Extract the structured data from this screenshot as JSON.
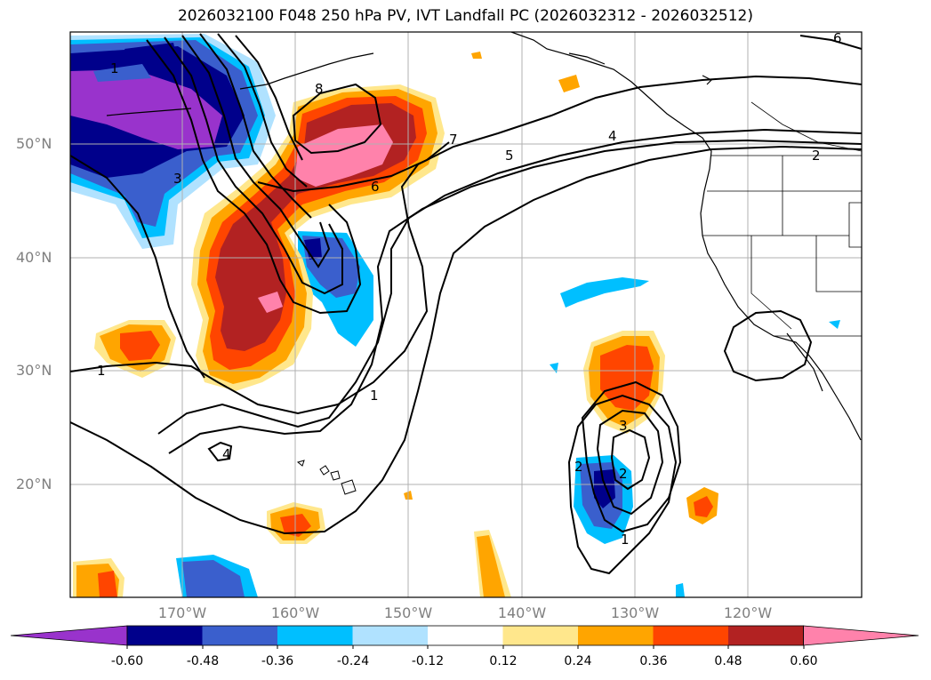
{
  "title": "2026032100 F048 250 hPa PV, IVT Landfall PC (2026032312 - 2026032512)",
  "lat_labels": [
    "50°N",
    "40°N",
    "30°N",
    "20°N"
  ],
  "lon_labels": [
    "170°W",
    "160°W",
    "150°W",
    "140°W",
    "130°W",
    "120°W"
  ],
  "colorbar": {
    "labels": [
      "-0.60",
      "-0.48",
      "-0.36",
      "-0.24",
      "-0.12",
      "0.12",
      "0.24",
      "0.36",
      "0.48",
      "0.60"
    ],
    "colors": [
      "#9933cc",
      "#00008b",
      "#3a5fcd",
      "#00bfff",
      "#b0e2ff",
      "#ffffff",
      "#ffe78c",
      "#ffa500",
      "#ff4500",
      "#b22222",
      "#ff82ab"
    ]
  },
  "contour_labels": [
    "1",
    "3",
    "8",
    "7",
    "5",
    "4",
    "6",
    "2",
    "6",
    "1",
    "1",
    "4",
    "2",
    "3",
    "1",
    "2"
  ]
}
